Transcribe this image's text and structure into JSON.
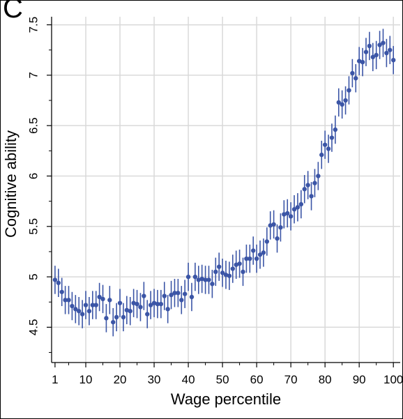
{
  "panel_label": "C",
  "chart_data": {
    "type": "scatter",
    "xlabel": "Wage percentile",
    "ylabel": "Cognitive ability",
    "xlim": [
      0,
      102
    ],
    "ylim": [
      4.15,
      7.58
    ],
    "x_ticks": [
      1,
      10,
      20,
      30,
      40,
      50,
      60,
      70,
      80,
      90,
      100
    ],
    "y_ticks": [
      4.5,
      5,
      5.5,
      6,
      6.5,
      7,
      7.5
    ],
    "y_tick_labels": [
      "4.5",
      "5",
      "5.5",
      "6",
      "6.5",
      "7",
      "7.5"
    ],
    "grid": true,
    "color": "#3b55a6",
    "series": [
      {
        "x": [
          1,
          2,
          3,
          4,
          5,
          6,
          7,
          8,
          9,
          10,
          11,
          12,
          13,
          14,
          15,
          16,
          17,
          18,
          19,
          20,
          21,
          22,
          23,
          24,
          25,
          26,
          27,
          28,
          29,
          30,
          31,
          32,
          33,
          34,
          35,
          36,
          37,
          38,
          39,
          40,
          41,
          42,
          43,
          44,
          45,
          46,
          47,
          48,
          49,
          50,
          51,
          52,
          53,
          54,
          55,
          56,
          57,
          58,
          59,
          60,
          61,
          62,
          63,
          64,
          65,
          66,
          67,
          68,
          69,
          70,
          71,
          72,
          73,
          74,
          75,
          76,
          77,
          78,
          79,
          80,
          81,
          82,
          83,
          84,
          85,
          86,
          87,
          88,
          89,
          90,
          91,
          92,
          93,
          94,
          95,
          96,
          97,
          98,
          99,
          100
        ],
        "y": [
          4.97,
          4.94,
          4.85,
          4.77,
          4.77,
          4.71,
          4.68,
          4.66,
          4.63,
          4.72,
          4.66,
          4.72,
          4.72,
          4.8,
          4.78,
          4.59,
          4.77,
          4.55,
          4.6,
          4.74,
          4.6,
          4.67,
          4.66,
          4.74,
          4.73,
          4.7,
          4.81,
          4.63,
          4.72,
          4.74,
          4.73,
          4.73,
          4.81,
          4.68,
          4.82,
          4.84,
          4.84,
          4.77,
          4.83,
          5.0,
          4.8,
          5.0,
          4.97,
          4.98,
          4.97,
          4.97,
          4.93,
          5.05,
          5.1,
          5.04,
          5.02,
          5.01,
          5.08,
          5.12,
          5.13,
          5.05,
          5.18,
          5.18,
          5.26,
          5.18,
          5.22,
          5.24,
          5.35,
          5.51,
          5.52,
          5.38,
          5.49,
          5.62,
          5.63,
          5.6,
          5.67,
          5.69,
          5.72,
          5.87,
          5.91,
          5.8,
          5.93,
          6.0,
          6.21,
          6.31,
          6.27,
          6.38,
          6.46,
          6.73,
          6.71,
          6.75,
          6.85,
          7.02,
          6.97,
          7.14,
          7.13,
          7.23,
          7.29,
          7.18,
          7.2,
          7.3,
          7.32,
          7.22,
          7.25,
          7.15
        ],
        "err": [
          0.14,
          0.14,
          0.14,
          0.14,
          0.14,
          0.14,
          0.14,
          0.14,
          0.14,
          0.14,
          0.14,
          0.14,
          0.14,
          0.14,
          0.14,
          0.14,
          0.14,
          0.14,
          0.14,
          0.14,
          0.14,
          0.14,
          0.14,
          0.14,
          0.14,
          0.14,
          0.14,
          0.14,
          0.14,
          0.14,
          0.14,
          0.14,
          0.14,
          0.14,
          0.14,
          0.14,
          0.14,
          0.14,
          0.14,
          0.14,
          0.14,
          0.14,
          0.14,
          0.14,
          0.14,
          0.14,
          0.14,
          0.14,
          0.14,
          0.14,
          0.14,
          0.14,
          0.14,
          0.14,
          0.14,
          0.14,
          0.14,
          0.14,
          0.14,
          0.14,
          0.14,
          0.14,
          0.14,
          0.14,
          0.14,
          0.14,
          0.14,
          0.14,
          0.14,
          0.14,
          0.14,
          0.14,
          0.14,
          0.14,
          0.14,
          0.14,
          0.14,
          0.14,
          0.14,
          0.14,
          0.14,
          0.14,
          0.14,
          0.14,
          0.14,
          0.14,
          0.14,
          0.14,
          0.14,
          0.14,
          0.14,
          0.14,
          0.14,
          0.14,
          0.14,
          0.14,
          0.14,
          0.14,
          0.14,
          0.14
        ]
      }
    ]
  }
}
